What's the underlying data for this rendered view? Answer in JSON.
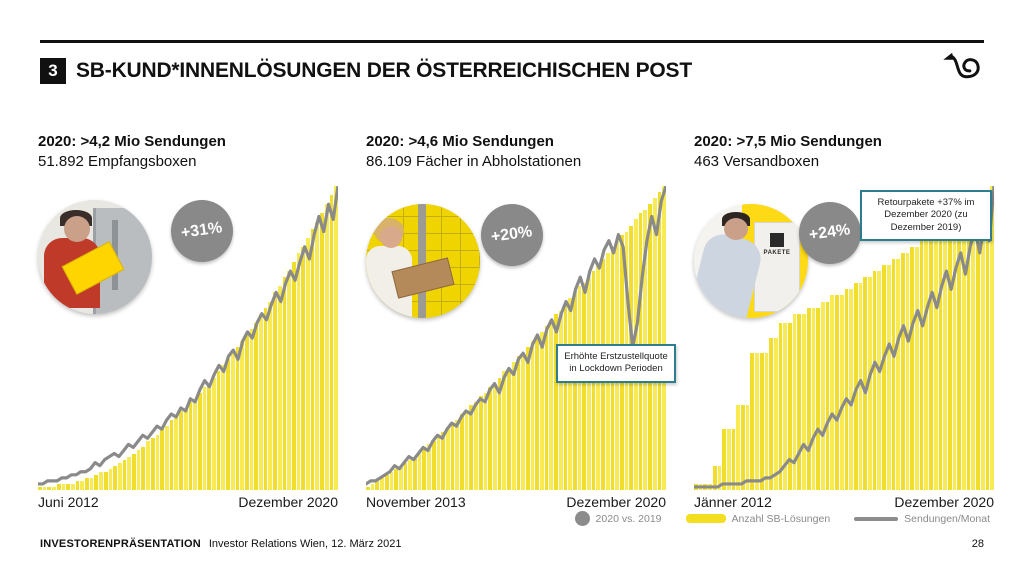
{
  "slide": {
    "number_badge": "3",
    "title": "SB-KUND*INNENLÖSUNGEN DER ÖSTERREICHISCHEN POST",
    "logo_name": "austrian-post-posthorn-logo",
    "footer_label": "INVESTORENPRÄSENTATION",
    "footer_text": "Investor Relations Wien, 12. März 2021",
    "page_number": "28"
  },
  "legend": {
    "items": [
      {
        "swatch": "circle",
        "color": "#8c8c8c",
        "label": "2020 vs. 2019"
      },
      {
        "swatch": "bar",
        "color": "#f3df20",
        "label": "Anzahl SB-Lösungen"
      },
      {
        "swatch": "line",
        "color": "#8c8c8c",
        "label": "Sendungen/Monat"
      }
    ]
  },
  "colors": {
    "bar_yellow_a": "#f1de2c",
    "bar_yellow_b": "#f8ea52",
    "line_gray": "#8a8a8a",
    "badge_gray": "#898989",
    "annotation_border": "#2d7d8e"
  },
  "photos": {
    "empfangsbox": "person-inserting-yellow-parcel-into-empfangsbox",
    "abholstation": "woman-taking-parcel-from-yellow-abholstation-lockers",
    "versandbox": "man-using-yellow-versandbox-machine",
    "pakete_label": "PAKETE"
  },
  "chart_data": [
    {
      "type": "bar",
      "title": "2020: >4,2 Mio Sendungen",
      "subtitle": "51.892 Empfangsboxen",
      "badge": "+31%",
      "x_start_label": "Juni 2012",
      "x_end_label": "Dezember 2020",
      "bar_series_name": "Anzahl SB-Lösungen",
      "line_series_name": "Sendungen/Monat",
      "unit": "normalized % of series maximum (no numeric axis shown)",
      "bars": [
        1,
        1,
        1,
        1,
        2,
        2,
        2,
        2,
        3,
        3,
        4,
        4,
        5,
        6,
        6,
        7,
        8,
        9,
        10,
        11,
        12,
        13,
        14,
        16,
        17,
        18,
        20,
        21,
        23,
        24,
        26,
        27,
        29,
        30,
        32,
        34,
        35,
        37,
        39,
        41,
        43,
        45,
        47,
        49,
        51,
        53,
        55,
        58,
        60,
        62,
        65,
        67,
        70,
        72,
        75,
        78,
        80,
        83,
        86,
        88,
        91,
        94,
        97,
        100
      ],
      "line": [
        2,
        2,
        3,
        3,
        3,
        4,
        4,
        5,
        5,
        6,
        6,
        7,
        9,
        8,
        10,
        11,
        12,
        11,
        13,
        15,
        14,
        16,
        18,
        17,
        19,
        21,
        20,
        23,
        25,
        24,
        27,
        26,
        30,
        29,
        33,
        36,
        34,
        38,
        41,
        39,
        44,
        46,
        43,
        49,
        52,
        50,
        55,
        58,
        56,
        61,
        65,
        62,
        68,
        72,
        69,
        75,
        80,
        76,
        84,
        90,
        85,
        94,
        89,
        100
      ],
      "annotation": null
    },
    {
      "type": "bar",
      "title": "2020: >4,6 Mio Sendungen",
      "subtitle": "86.109 Fächer in Abholstationen",
      "badge": "+20%",
      "x_start_label": "November 2013",
      "x_end_label": "Dezember 2020",
      "bar_series_name": "Anzahl SB-Lösungen",
      "line_series_name": "Sendungen/Monat",
      "unit": "normalized % of series maximum (no numeric axis shown)",
      "bars": [
        1,
        2,
        3,
        4,
        5,
        6,
        7,
        8,
        9,
        10,
        11,
        12,
        14,
        15,
        16,
        18,
        19,
        20,
        22,
        23,
        25,
        26,
        28,
        29,
        31,
        32,
        34,
        35,
        37,
        39,
        40,
        42,
        44,
        45,
        47,
        49,
        50,
        52,
        54,
        56,
        58,
        59,
        61,
        63,
        65,
        67,
        68,
        70,
        72,
        74,
        76,
        78,
        80,
        82,
        84,
        85,
        87,
        89,
        91,
        92,
        94,
        96,
        98,
        100
      ],
      "line": [
        2,
        3,
        3,
        4,
        5,
        6,
        8,
        7,
        9,
        11,
        10,
        12,
        14,
        13,
        16,
        18,
        17,
        20,
        22,
        21,
        24,
        26,
        25,
        28,
        30,
        29,
        33,
        35,
        32,
        37,
        40,
        38,
        43,
        45,
        42,
        48,
        51,
        47,
        53,
        56,
        52,
        58,
        62,
        59,
        66,
        70,
        65,
        72,
        76,
        73,
        79,
        82,
        78,
        84,
        80,
        62,
        47,
        55,
        70,
        82,
        90,
        84,
        95,
        100
      ],
      "annotation": "Erhöhte Erstzustellquote in Lockdown Perioden"
    },
    {
      "type": "bar",
      "title": "2020: >7,5 Mio Sendungen",
      "subtitle": "463 Versandboxen",
      "badge": "+24%",
      "x_start_label": "Jänner 2012",
      "x_end_label": "Dezember 2020",
      "bar_series_name": "Anzahl SB-Lösungen",
      "line_series_name": "Sendungen/Monat",
      "unit": "normalized % of series maximum (no numeric axis shown)",
      "bars": [
        2,
        2,
        2,
        2,
        8,
        8,
        20,
        20,
        20,
        28,
        28,
        28,
        45,
        45,
        45,
        45,
        50,
        50,
        55,
        55,
        55,
        58,
        58,
        58,
        60,
        60,
        60,
        62,
        62,
        64,
        64,
        64,
        66,
        66,
        68,
        68,
        70,
        70,
        72,
        72,
        74,
        74,
        76,
        76,
        78,
        78,
        80,
        80,
        82,
        82,
        84,
        84,
        86,
        86,
        88,
        88,
        90,
        90,
        92,
        94,
        95,
        96,
        98,
        100
      ],
      "line": [
        1,
        1,
        1,
        1,
        1,
        1,
        2,
        2,
        2,
        2,
        2,
        3,
        3,
        3,
        3,
        4,
        4,
        5,
        6,
        8,
        10,
        9,
        12,
        15,
        13,
        17,
        20,
        18,
        22,
        25,
        23,
        27,
        30,
        28,
        33,
        36,
        32,
        38,
        42,
        39,
        44,
        48,
        44,
        50,
        54,
        49,
        55,
        59,
        54,
        60,
        65,
        60,
        67,
        72,
        66,
        73,
        78,
        71,
        80,
        86,
        78,
        88,
        82,
        100
      ],
      "annotation": "Retourpakete +37% im Dezember 2020 (zu Dezember 2019)"
    }
  ]
}
